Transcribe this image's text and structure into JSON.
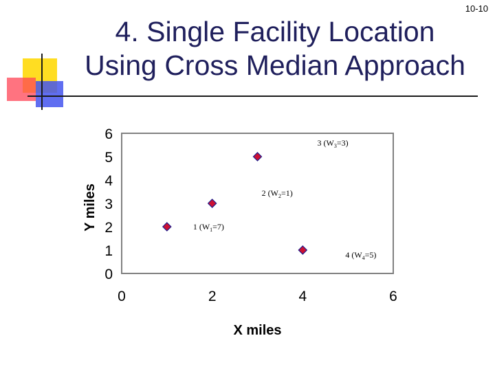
{
  "slide": {
    "page_number": "10-10",
    "title_line1": "4. Single Facility Location",
    "title_line2": "Using Cross Median Approach"
  },
  "colors": {
    "title": "#1f1f5c",
    "marker_fill": "#cc1133",
    "marker_stroke": "#1a1a8c",
    "plot_border": "#808080",
    "deco_yellow": "#ffdd22",
    "deco_red": "#ff4455",
    "deco_blue": "#4455ee"
  },
  "chart_data": {
    "type": "scatter",
    "xlabel": "X miles",
    "ylabel": "Y miles",
    "xlim": [
      0,
      6
    ],
    "ylim": [
      0,
      6
    ],
    "xticks": [
      "0",
      "2",
      "4",
      "6"
    ],
    "yticks": [
      "0",
      "1",
      "2",
      "3",
      "4",
      "5",
      "6"
    ],
    "grid": false,
    "legend": "none",
    "points": [
      {
        "x": 1,
        "y": 2,
        "label_pre": "1 (W",
        "label_sub": "1",
        "label_post": "=7)"
      },
      {
        "x": 2,
        "y": 3,
        "label_pre": "2 (W",
        "label_sub": "2",
        "label_post": "=1)"
      },
      {
        "x": 3,
        "y": 5,
        "label_pre": "3 (W",
        "label_sub": "3",
        "label_post": "=3)"
      },
      {
        "x": 4,
        "y": 1,
        "label_pre": "4  (W",
        "label_sub": "4",
        "label_post": "=5)"
      }
    ]
  }
}
